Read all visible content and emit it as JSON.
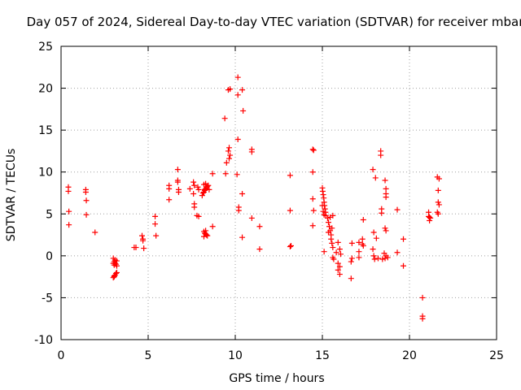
{
  "chart_data": {
    "type": "scatter",
    "title": "Day 057 of 2024, Sidereal Day-to-day VTEC variation (SDTVAR) for receiver mbar",
    "xlabel": "GPS time / hours",
    "ylabel": "SDTVAR / TECUs",
    "xlim": [
      0,
      25
    ],
    "ylim": [
      -10,
      25
    ],
    "xticks": [
      0,
      5,
      10,
      15,
      20,
      25
    ],
    "yticks": [
      -10,
      -5,
      0,
      5,
      10,
      15,
      20,
      25
    ],
    "xtick_labels": [
      "0",
      "5",
      "10",
      "15",
      "20",
      "25"
    ],
    "ytick_labels": [
      "-10",
      "-5",
      "0",
      "5",
      "10",
      "15",
      "20",
      "25"
    ],
    "grid": true,
    "marker": "+",
    "series": [
      {
        "name": "SDTVAR",
        "color": "#ff0000",
        "points": [
          [
            0.42,
            8.2
          ],
          [
            0.42,
            7.7
          ],
          [
            0.45,
            5.3
          ],
          [
            0.45,
            3.7
          ],
          [
            1.42,
            7.9
          ],
          [
            1.42,
            7.6
          ],
          [
            1.45,
            6.6
          ],
          [
            1.45,
            4.9
          ],
          [
            1.95,
            2.8
          ],
          [
            3.0,
            -0.3
          ],
          [
            3.05,
            -0.7
          ],
          [
            3.05,
            -1.1
          ],
          [
            3.1,
            -0.9
          ],
          [
            3.15,
            -1.0
          ],
          [
            3.2,
            -0.6
          ],
          [
            3.2,
            -1.2
          ],
          [
            3.1,
            -0.5
          ],
          [
            3.0,
            -0.9
          ],
          [
            3.0,
            -2.6
          ],
          [
            3.05,
            -2.4
          ],
          [
            3.1,
            -2.3
          ],
          [
            3.15,
            -2.1
          ],
          [
            3.2,
            -2.0
          ],
          [
            3.05,
            -2.5
          ],
          [
            4.2,
            1.0
          ],
          [
            4.3,
            1.0
          ],
          [
            4.65,
            2.4
          ],
          [
            4.7,
            2.0
          ],
          [
            4.7,
            1.8
          ],
          [
            4.75,
            0.9
          ],
          [
            5.4,
            4.7
          ],
          [
            5.4,
            3.8
          ],
          [
            5.45,
            2.4
          ],
          [
            6.2,
            8.4
          ],
          [
            6.2,
            8.0
          ],
          [
            6.2,
            6.7
          ],
          [
            6.7,
            10.3
          ],
          [
            6.7,
            9.0
          ],
          [
            6.7,
            8.8
          ],
          [
            6.75,
            7.9
          ],
          [
            6.75,
            7.6
          ],
          [
            7.4,
            8.0
          ],
          [
            7.6,
            8.8
          ],
          [
            7.65,
            8.4
          ],
          [
            7.6,
            7.4
          ],
          [
            7.65,
            6.2
          ],
          [
            7.65,
            5.8
          ],
          [
            7.85,
            8.2
          ],
          [
            7.9,
            7.9
          ],
          [
            7.8,
            4.8
          ],
          [
            7.9,
            4.7
          ],
          [
            8.1,
            7.2
          ],
          [
            8.15,
            7.5
          ],
          [
            8.2,
            7.6
          ],
          [
            8.25,
            7.8
          ],
          [
            8.3,
            8.0
          ],
          [
            8.35,
            8.1
          ],
          [
            8.4,
            8.3
          ],
          [
            8.45,
            8.4
          ],
          [
            8.2,
            8.5
          ],
          [
            8.3,
            8.6
          ],
          [
            8.25,
            7.9
          ],
          [
            8.2,
            2.9
          ],
          [
            8.25,
            2.7
          ],
          [
            8.3,
            2.6
          ],
          [
            8.35,
            2.5
          ],
          [
            8.4,
            2.4
          ],
          [
            8.2,
            2.3
          ],
          [
            8.3,
            3.0
          ],
          [
            8.5,
            7.9
          ],
          [
            8.7,
            9.8
          ],
          [
            8.7,
            3.5
          ],
          [
            9.4,
            16.4
          ],
          [
            9.5,
            11.1
          ],
          [
            9.45,
            9.8
          ],
          [
            9.6,
            19.8
          ],
          [
            9.7,
            19.9
          ],
          [
            9.65,
            12.9
          ],
          [
            9.6,
            12.5
          ],
          [
            9.7,
            12.0
          ],
          [
            9.65,
            11.6
          ],
          [
            10.15,
            21.3
          ],
          [
            10.15,
            19.2
          ],
          [
            10.4,
            19.8
          ],
          [
            10.45,
            17.3
          ],
          [
            10.15,
            13.9
          ],
          [
            10.1,
            9.7
          ],
          [
            10.2,
            5.8
          ],
          [
            10.2,
            5.4
          ],
          [
            10.4,
            7.4
          ],
          [
            10.4,
            2.2
          ],
          [
            10.95,
            12.7
          ],
          [
            10.95,
            12.4
          ],
          [
            10.95,
            4.5
          ],
          [
            11.4,
            3.5
          ],
          [
            11.4,
            0.8
          ],
          [
            13.15,
            9.6
          ],
          [
            13.15,
            5.4
          ],
          [
            13.2,
            1.2
          ],
          [
            13.15,
            1.1
          ],
          [
            14.45,
            12.7
          ],
          [
            14.5,
            12.6
          ],
          [
            14.45,
            10.0
          ],
          [
            14.45,
            6.8
          ],
          [
            14.5,
            5.4
          ],
          [
            14.45,
            3.6
          ],
          [
            15.0,
            8.1
          ],
          [
            15.02,
            7.7
          ],
          [
            15.05,
            7.3
          ],
          [
            15.08,
            6.9
          ],
          [
            15.1,
            6.4
          ],
          [
            15.12,
            6.0
          ],
          [
            15.15,
            5.6
          ],
          [
            15.18,
            5.2
          ],
          [
            15.2,
            4.8
          ],
          [
            15.0,
            6.0
          ],
          [
            15.05,
            5.3
          ],
          [
            15.1,
            4.9
          ],
          [
            15.3,
            4.5
          ],
          [
            15.35,
            4.0
          ],
          [
            15.4,
            3.5
          ],
          [
            15.45,
            3.0
          ],
          [
            15.5,
            2.5
          ],
          [
            15.5,
            2.0
          ],
          [
            15.55,
            1.5
          ],
          [
            15.6,
            1.0
          ],
          [
            15.6,
            4.8
          ],
          [
            15.45,
            4.6
          ],
          [
            15.55,
            3.3
          ],
          [
            15.35,
            2.8
          ],
          [
            15.6,
            -0.2
          ],
          [
            15.65,
            -0.4
          ],
          [
            15.8,
            0.4
          ],
          [
            15.9,
            1.6
          ],
          [
            15.9,
            -0.9
          ],
          [
            16.0,
            -1.3
          ],
          [
            16.0,
            -2.2
          ],
          [
            15.9,
            -1.7
          ],
          [
            16.0,
            0.8
          ],
          [
            16.05,
            0.2
          ],
          [
            15.1,
            0.5
          ],
          [
            16.65,
            -2.7
          ],
          [
            16.65,
            -0.7
          ],
          [
            16.7,
            -0.3
          ],
          [
            16.7,
            1.5
          ],
          [
            17.1,
            1.6
          ],
          [
            17.1,
            0.5
          ],
          [
            17.1,
            -0.2
          ],
          [
            17.35,
            4.3
          ],
          [
            17.3,
            2.0
          ],
          [
            17.3,
            1.4
          ],
          [
            17.35,
            1.2
          ],
          [
            17.9,
            10.3
          ],
          [
            18.05,
            9.3
          ],
          [
            17.95,
            2.8
          ],
          [
            17.9,
            0.8
          ],
          [
            17.95,
            0.0
          ],
          [
            18.1,
            2.1
          ],
          [
            18.0,
            -0.4
          ],
          [
            18.2,
            -0.3
          ],
          [
            18.35,
            12.5
          ],
          [
            18.35,
            12.0
          ],
          [
            18.4,
            5.6
          ],
          [
            18.4,
            5.1
          ],
          [
            18.6,
            9.0
          ],
          [
            18.65,
            8.0
          ],
          [
            18.65,
            7.4
          ],
          [
            18.65,
            7.0
          ],
          [
            18.6,
            3.3
          ],
          [
            18.65,
            3.0
          ],
          [
            18.55,
            0.3
          ],
          [
            18.65,
            0.0
          ],
          [
            18.6,
            -0.3
          ],
          [
            18.75,
            -0.2
          ],
          [
            18.45,
            -0.4
          ],
          [
            19.3,
            5.5
          ],
          [
            19.3,
            0.4
          ],
          [
            19.65,
            2.0
          ],
          [
            19.65,
            -1.2
          ],
          [
            20.75,
            -5.0
          ],
          [
            20.75,
            -7.2
          ],
          [
            20.75,
            -7.5
          ],
          [
            21.1,
            5.2
          ],
          [
            21.15,
            4.6
          ],
          [
            21.15,
            4.2
          ],
          [
            21.1,
            4.7
          ],
          [
            21.2,
            4.5
          ],
          [
            21.6,
            9.4
          ],
          [
            21.7,
            9.2
          ],
          [
            21.65,
            7.8
          ],
          [
            21.65,
            6.4
          ],
          [
            21.7,
            6.1
          ],
          [
            21.6,
            5.2
          ],
          [
            21.65,
            5.0
          ]
        ]
      }
    ]
  }
}
